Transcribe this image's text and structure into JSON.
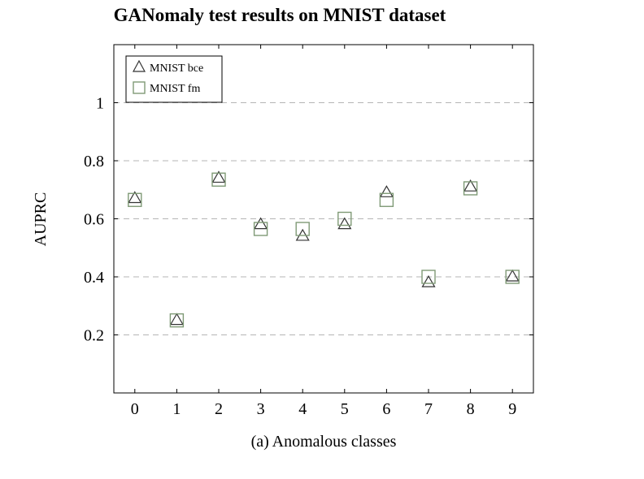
{
  "chart_data": {
    "type": "scatter",
    "title": "GANomaly test results on MNIST dataset",
    "xlabel": "(a) Anomalous classes",
    "ylabel": "AUPRC",
    "categories": [
      "0",
      "1",
      "2",
      "3",
      "4",
      "5",
      "6",
      "7",
      "8",
      "9"
    ],
    "x": [
      0,
      1,
      2,
      3,
      4,
      5,
      6,
      7,
      8,
      9
    ],
    "xlim": [
      -0.5,
      9.5
    ],
    "ylim": [
      0,
      1.2
    ],
    "y_ticks": [
      0.2,
      0.4,
      0.6,
      0.8,
      1.0
    ],
    "y_tick_labels": [
      "0.2",
      "0.4",
      "0.6",
      "0.8",
      "1"
    ],
    "grid": "horizontal dashed",
    "legend_position": "top-left",
    "series": [
      {
        "name": "MNIST bce",
        "marker": "triangle",
        "color": "#333333",
        "values": [
          0.67,
          0.25,
          0.74,
          0.58,
          0.54,
          0.58,
          0.69,
          0.38,
          0.71,
          0.4
        ]
      },
      {
        "name": "MNIST fm",
        "marker": "square",
        "color": "#7f9a76",
        "values": [
          0.665,
          0.25,
          0.735,
          0.565,
          0.565,
          0.6,
          0.665,
          0.4,
          0.705,
          0.4
        ]
      }
    ]
  }
}
